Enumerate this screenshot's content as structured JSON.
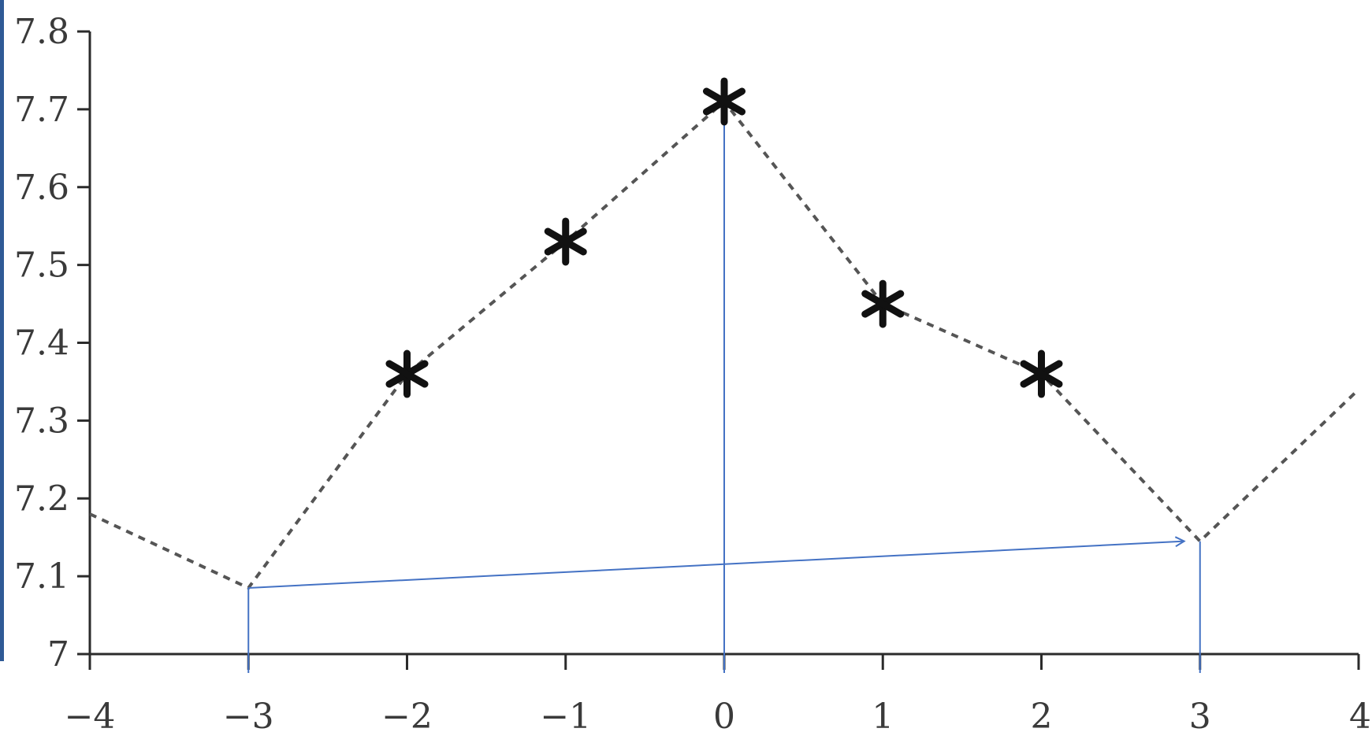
{
  "chart_data": {
    "type": "line",
    "title": "",
    "xlabel": "",
    "ylabel": "",
    "xlim": [
      -4,
      4
    ],
    "ylim": [
      7,
      7.8
    ],
    "x_ticks": [
      -4,
      -3,
      -2,
      -1,
      0,
      1,
      2,
      3,
      4
    ],
    "x_tick_labels": [
      "−4",
      "−3",
      "−2",
      "−1",
      "0",
      "1",
      "2",
      "3",
      "4"
    ],
    "y_ticks": [
      7,
      7.1,
      7.2,
      7.3,
      7.4,
      7.5,
      7.6,
      7.7,
      7.8
    ],
    "y_tick_labels": [
      "7",
      "7.1",
      "7.2",
      "7.3",
      "7.4",
      "7.5",
      "7.6",
      "7.7",
      "7.8"
    ],
    "grid": false,
    "legend": "none",
    "series": [
      {
        "style": "dashed-line",
        "color": "#555555",
        "x": [
          -4,
          -3,
          -2,
          -1,
          0,
          1,
          2,
          3,
          4
        ],
        "y": [
          7.18,
          7.085,
          7.36,
          7.53,
          7.71,
          7.45,
          7.36,
          7.145,
          7.34
        ]
      },
      {
        "style": "asterisk-markers",
        "color": "#111111",
        "x": [
          -2,
          -1,
          0,
          1,
          2
        ],
        "y": [
          7.36,
          7.53,
          7.71,
          7.45,
          7.36
        ]
      }
    ],
    "annotations": [
      {
        "type": "vertical-line",
        "color": "#4472c4",
        "x": -3,
        "y_from": 7,
        "y_to": 7.085
      },
      {
        "type": "vertical-line",
        "color": "#4472c4",
        "x": 0,
        "y_from": 7,
        "y_to": 7.71
      },
      {
        "type": "vertical-line",
        "color": "#4472c4",
        "x": 3,
        "y_from": 7,
        "y_to": 7.145
      },
      {
        "type": "arrow",
        "color": "#4472c4",
        "from": [
          -3,
          7.085
        ],
        "to": [
          2.9,
          7.145
        ]
      }
    ]
  }
}
